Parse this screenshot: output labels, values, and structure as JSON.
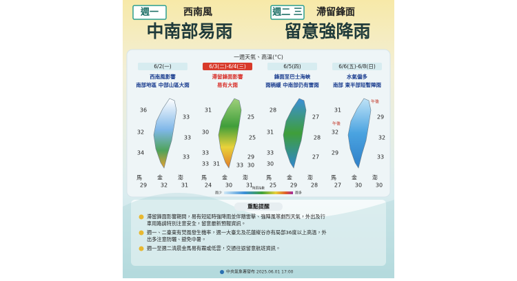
{
  "header": {
    "left": {
      "tag": "週一",
      "label": "西南風",
      "headline": "中南部易雨"
    },
    "right": {
      "tag": "週二 三",
      "label": "滯留鋒面",
      "headline": "留意強降雨"
    }
  },
  "section_title": "一週天氣、高溫(°C)",
  "panels": [
    {
      "date": "6/2(一)",
      "lines": [
        "西南風影響",
        "南部地區 中部山區大雨"
      ],
      "temps": [
        36,
        33,
        32,
        33,
        34,
        33
      ],
      "islands": [
        {
          "name": "馬",
          "temp": 29
        },
        {
          "name": "金",
          "temp": 32
        },
        {
          "name": "澎",
          "temp": 31
        }
      ]
    },
    {
      "date": "6/3(二)-6/4(三)",
      "lines": [
        "滯留鋒面影響",
        "易有大雨"
      ],
      "temps": [
        31,
        25,
        30,
        25,
        33,
        29,
        33,
        31,
        33,
        30
      ],
      "islands": [
        {
          "name": "馬",
          "temp": 24
        },
        {
          "name": "金",
          "temp": 30
        },
        {
          "name": "澎",
          "temp": 31
        }
      ]
    },
    {
      "date": "6/5(四)",
      "lines": [
        "鋒面至巴士海峽",
        "雨稍緩 中南部仍有雷雨"
      ],
      "temps": [
        28,
        27,
        31,
        28,
        33,
        27,
        30
      ],
      "islands": [
        {
          "name": "馬",
          "temp": 25
        },
        {
          "name": "金",
          "temp": 29
        },
        {
          "name": "澎",
          "temp": 28
        }
      ]
    },
    {
      "date": "6/6(五)-6/8(日)",
      "lines": [
        "水氣偏多",
        "南部 東半部短暫陣雨"
      ],
      "notes": [
        "午後",
        "午後"
      ],
      "temps": [
        31,
        29,
        32,
        32,
        29,
        33
      ],
      "islands": [
        {
          "name": "馬",
          "temp": 27
        },
        {
          "name": "金",
          "temp": 30
        },
        {
          "name": "澎",
          "temp": 30
        }
      ]
    }
  ],
  "legend": {
    "low": "雨少",
    "title": "降雨指數",
    "high": "雨多"
  },
  "notes": {
    "title": "重點提醒",
    "items": [
      "滯留鋒面影響期間，易有短延時強降雨並伴隨雷擊、強陣風等劇烈天氣，外出及行",
      "車用路請特別注意安全，留意最新預報資訊。",
      "週一、二臺東有焚風發生機率，週一大臺北及花蓮縱谷亦有局部36度以上高溫，外",
      "出多注意防曬、避免中暑。",
      "週一至週二清晨金馬易有霧或低雲，交通往返留意航班資訊。"
    ]
  },
  "footer": "中央氣象署發布 2025.06.01 17:00"
}
